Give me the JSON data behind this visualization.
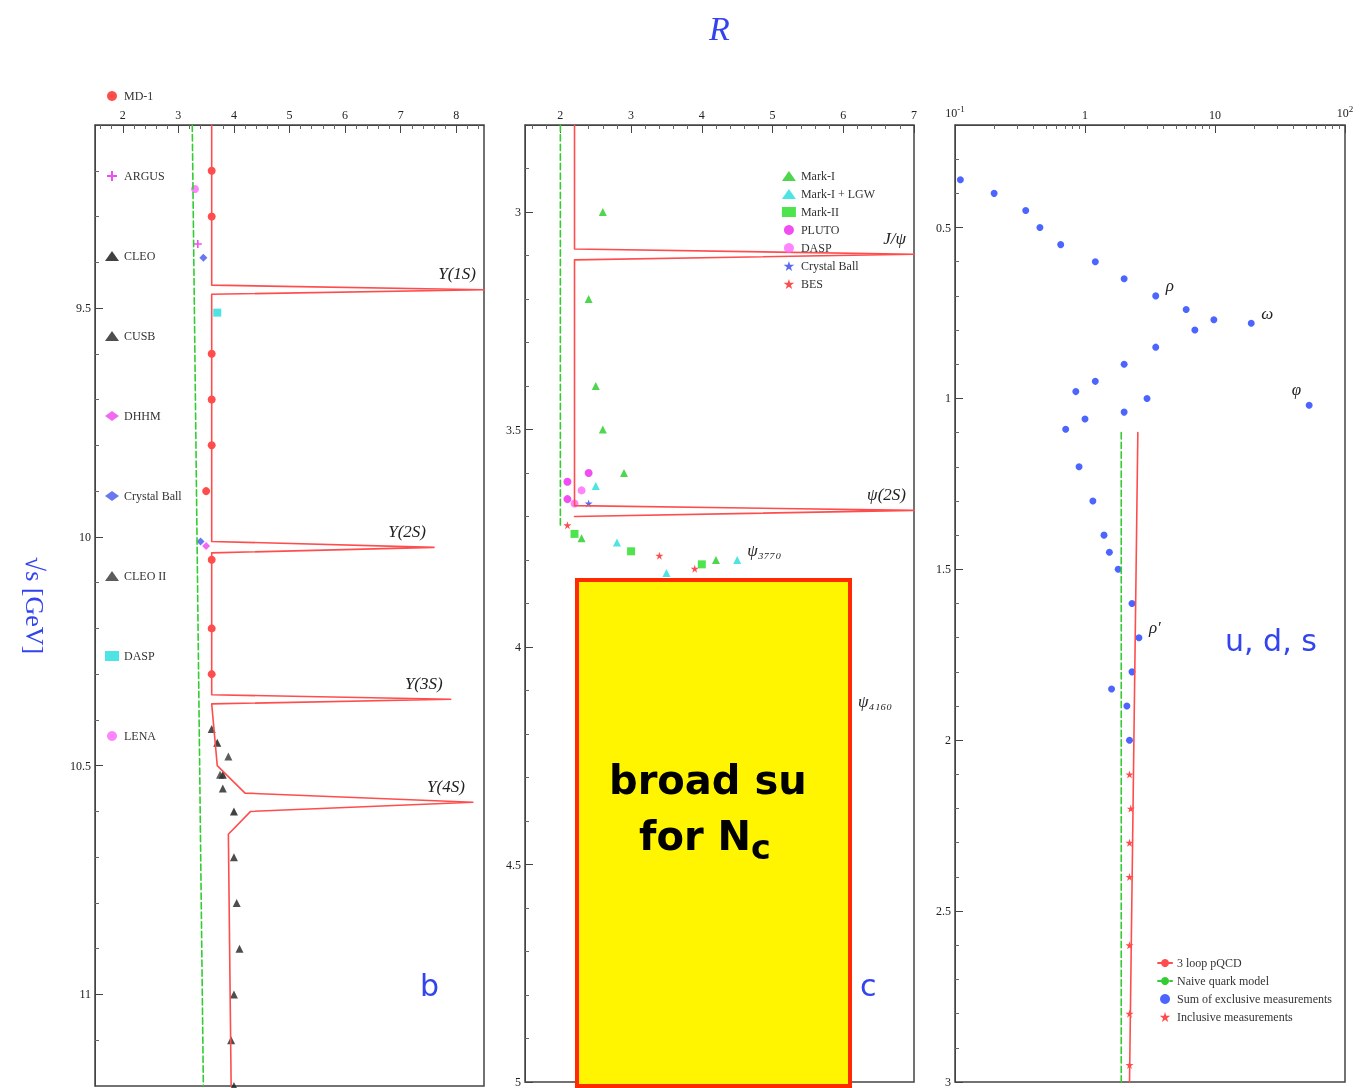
{
  "chart_data": [
    {
      "type": "line",
      "title": "u, d, s",
      "log": "x",
      "xlim": [
        0.1,
        100
      ],
      "xticks": [
        {
          "value": 0.1,
          "label": "10$^{-1}$"
        },
        1,
        10,
        {
          "value": 100,
          "label": "10$^{2}$"
        }
      ],
      "ylim": [
        3,
        0.2
      ],
      "yticks": [
        0.5,
        1,
        1.5,
        2,
        2.5,
        3
      ],
      "legend": "bottom right",
      "annotations": [
        {
          "text": "ρ",
          "x": 3.5,
          "y": 0.7
        },
        {
          "text": "ω",
          "x": 19,
          "y": 0.78
        },
        {
          "text": "φ",
          "x": 53,
          "y": 1.02
        },
        {
          "text": "ρ′",
          "x": 2.6,
          "y": 1.7
        }
      ],
      "series": [
        {
          "name": "3 loop pQCD",
          "color": "#ff4d4d",
          "marker": "none",
          "x": [
            2.55,
            2.2
          ],
          "values": [
            1.1,
            3
          ]
        },
        {
          "name": "Naive quark model",
          "color": "#33cc33",
          "marker": "none",
          "line_style": "dashed",
          "x": [
            1.9,
            1.9
          ],
          "values": [
            1.1,
            3
          ]
        },
        {
          "name": "Sum of exclusive measurements",
          "type": "scatter",
          "color": "#1f3fff",
          "marker": "circle",
          "x": [
            0.11,
            0.2,
            0.35,
            0.45,
            0.65,
            1.2,
            2.0,
            3.5,
            6,
            9.8,
            19,
            7,
            3.5,
            2,
            1.2,
            0.85,
            3,
            53,
            2,
            1.0,
            0.71,
            0.9,
            1.15,
            1.4,
            1.54,
            1.8,
            2.3,
            2.6,
            2.3,
            1.6,
            2.1,
            2.2
          ],
          "values": [
            0.36,
            0.4,
            0.45,
            0.5,
            0.55,
            0.6,
            0.65,
            0.7,
            0.74,
            0.77,
            0.78,
            0.8,
            0.85,
            0.9,
            0.95,
            0.98,
            1.0,
            1.02,
            1.04,
            1.06,
            1.09,
            1.2,
            1.3,
            1.4,
            1.45,
            1.5,
            1.6,
            1.7,
            1.8,
            1.85,
            1.9,
            2.0
          ]
        },
        {
          "name": "Inclusive measurements",
          "type": "scatter",
          "color": "#ff2020",
          "marker": "star",
          "x": [
            2.2,
            2.25,
            2.2,
            2.2,
            2.2,
            2.2,
            2.2
          ],
          "values": [
            2.1,
            2.2,
            2.3,
            2.4,
            2.6,
            2.8,
            2.95
          ]
        }
      ]
    },
    {
      "type": "line",
      "title": "c",
      "xlabel": "R",
      "xlim": [
        1.5,
        7
      ],
      "xticks": [
        2,
        3,
        4,
        5,
        6,
        7
      ],
      "ylim": [
        5,
        2.8
      ],
      "yticks": [
        3,
        3.5,
        4,
        4.5,
        5
      ],
      "legend": "top right",
      "annotations": [
        {
          "text": "J/ψ",
          "x": 7,
          "y": 3.097
        },
        {
          "text": "ψ(2S)",
          "x": 7,
          "y": 3.686
        },
        {
          "text": "ψ₃₇₇₀",
          "x": 4.5,
          "y": 3.8
        },
        "ψ₄₁₆₀",
        "broad su",
        "for N$_{c}$"
      ],
      "series": [
        {
          "color": "#ff4d4d",
          "marker": "none",
          "x": [
            2.2,
            2.2,
            7,
            2.2,
            2.2,
            7,
            2.2
          ],
          "values": [
            2.8,
            3.085,
            3.097,
            3.11,
            3.675,
            3.686,
            3.7
          ]
        },
        {
          "color": "#33cc33",
          "marker": "none",
          "line_style": "dashed",
          "x": [
            2.0,
            2.0
          ],
          "values": [
            2.8,
            3.72
          ]
        },
        {
          "name": "Mark-I",
          "type": "scatter",
          "color": "#22cc22",
          "marker": "triangle",
          "x": [
            2.6,
            2.4,
            2.5,
            2.6,
            2.9,
            2.3,
            4.2
          ],
          "values": [
            3.0,
            3.2,
            3.4,
            3.5,
            3.6,
            3.75,
            3.8
          ]
        },
        {
          "name": "Mark-I + LGW",
          "type": "scatter",
          "color": "#22dddd",
          "marker": "triangle",
          "x": [
            2.5,
            2.8,
            4.5,
            3.5
          ],
          "values": [
            3.63,
            3.76,
            3.8,
            3.83
          ]
        },
        {
          "name": "Mark-II",
          "type": "scatter",
          "color": "#22dd22",
          "marker": "square",
          "x": [
            2.2,
            3.0,
            4.0
          ],
          "values": [
            3.74,
            3.78,
            3.81
          ]
        },
        {
          "name": "PLUTO",
          "type": "scatter",
          "color": "#ee22ee",
          "marker": "circle",
          "x": [
            2.4,
            2.1,
            2.1
          ],
          "values": [
            3.6,
            3.62,
            3.66
          ]
        },
        {
          "name": "DASP",
          "type": "scatter",
          "color": "#ff66ff",
          "marker": "circle",
          "x": [
            2.3,
            2.2
          ],
          "values": [
            3.64,
            3.67
          ]
        },
        {
          "name": "Crystal Ball",
          "type": "scatter",
          "color": "#3344ee",
          "marker": "star",
          "x": [
            2.4
          ],
          "values": [
            3.67
          ]
        },
        {
          "name": "BES",
          "type": "scatter",
          "color": "#ff2020",
          "marker": "star",
          "x": [
            2.1,
            3.4,
            3.9
          ],
          "values": [
            3.72,
            3.79,
            3.82
          ]
        }
      ]
    },
    {
      "type": "line",
      "title": "b",
      "ylabel": "√s [GeV]",
      "xlim": [
        1.5,
        8.5
      ],
      "xticks": [
        2,
        3,
        4,
        5,
        6,
        7,
        8
      ],
      "ylim": [
        11.2,
        9.1
      ],
      "yticks": [
        9.5,
        10,
        10.5,
        11
      ],
      "legend": "left",
      "annotations": [
        {
          "text": "Υ(1S)",
          "x": 8.5,
          "y": 9.46
        },
        {
          "text": "Υ(2S)",
          "x": 7.6,
          "y": 10.023
        },
        {
          "text": "Υ(3S)",
          "x": 7.9,
          "y": 10.355
        },
        {
          "text": "Υ(4S)",
          "x": 8.3,
          "y": 10.58
        }
      ],
      "series": [
        {
          "color": "#ff4d4d",
          "marker": "none",
          "x": [
            3.6,
            3.6,
            8.5,
            3.6,
            3.6,
            7.6,
            3.6,
            3.6,
            7.9,
            3.6,
            3.7,
            4.2,
            8.3,
            4.3,
            3.9,
            3.95
          ],
          "values": [
            9.1,
            9.45,
            9.46,
            9.47,
            10.01,
            10.023,
            10.035,
            10.345,
            10.355,
            10.365,
            10.5,
            10.56,
            10.58,
            10.6,
            10.65,
            11.2
          ]
        },
        {
          "color": "#33cc33",
          "marker": "none",
          "line_style": "dashed",
          "x": [
            3.25,
            3.45
          ],
          "values": [
            9.1,
            11.2
          ]
        },
        {
          "name": "MD-1",
          "type": "scatter",
          "color": "#ff2020",
          "marker": "circle",
          "x": [
            3.6,
            3.6,
            3.6,
            3.6,
            3.6,
            3.5,
            3.6,
            3.6,
            3.6
          ],
          "values": [
            9.2,
            9.3,
            9.6,
            9.7,
            9.8,
            9.9,
            10.05,
            10.2,
            10.3
          ]
        },
        {
          "name": "ARGUS",
          "type": "scatter",
          "color": "#ee22ee",
          "marker": "cross",
          "x": [
            3.35
          ],
          "values": [
            9.36
          ]
        },
        {
          "name": "CLEO",
          "type": "scatter",
          "color": "#111111",
          "marker": "triangle",
          "x": [
            3.7,
            3.8,
            4.0
          ],
          "values": [
            10.45,
            10.52,
            10.6
          ]
        },
        {
          "name": "CUSB",
          "type": "scatter",
          "color": "#222222",
          "marker": "triangle",
          "x": [
            3.6,
            3.8,
            4.0,
            4.05,
            4.1,
            4.0,
            3.95,
            4.0
          ],
          "values": [
            10.42,
            10.55,
            10.7,
            10.8,
            10.9,
            11.0,
            11.1,
            11.2
          ]
        },
        {
          "name": "DHHM",
          "type": "scatter",
          "color": "#ee44ee",
          "marker": "diamond",
          "x": [
            3.5
          ],
          "values": [
            10.02
          ]
        },
        {
          "name": "Crystal Ball",
          "type": "scatter",
          "color": "#4455ee",
          "marker": "diamond",
          "x": [
            3.45,
            3.4
          ],
          "values": [
            9.39,
            10.01
          ]
        },
        {
          "name": "CLEO II",
          "type": "scatter",
          "color": "#333333",
          "marker": "triangle",
          "x": [
            3.9,
            3.75
          ],
          "values": [
            10.48,
            10.52
          ]
        },
        {
          "name": "DASP",
          "type": "scatter",
          "color": "#22dddd",
          "marker": "square",
          "x": [
            3.7
          ],
          "values": [
            9.51
          ]
        },
        {
          "name": "LENA",
          "type": "scatter",
          "color": "#ff66ff",
          "marker": "circle",
          "x": [
            3.3
          ],
          "values": [
            9.24
          ]
        }
      ]
    }
  ]
}
